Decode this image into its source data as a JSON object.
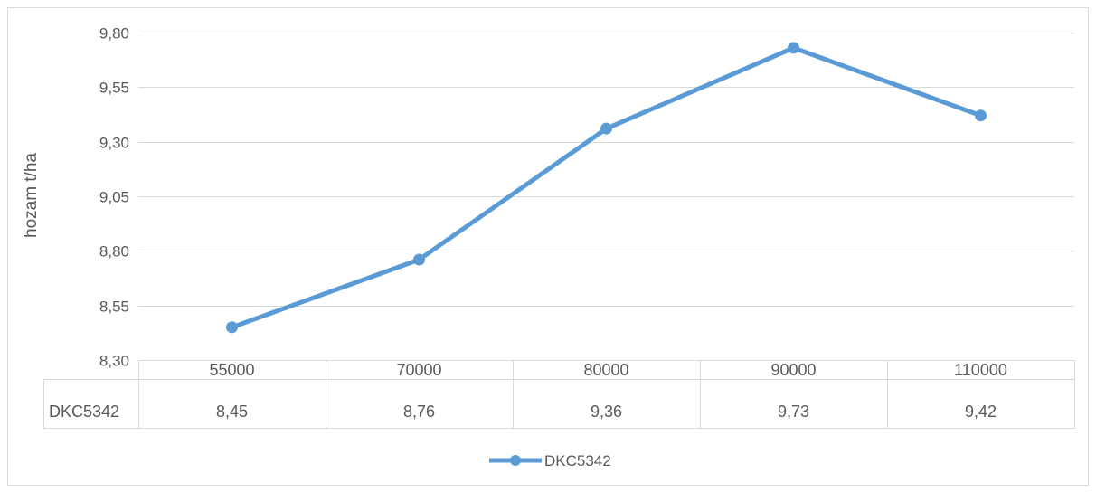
{
  "chart_data": {
    "type": "line",
    "title": "",
    "xlabel": "",
    "ylabel": "hozam t/ha",
    "categories": [
      "55000",
      "70000",
      "80000",
      "90000",
      "110000"
    ],
    "series": [
      {
        "name": "DKC5342",
        "values": [
          8.45,
          8.76,
          9.36,
          9.73,
          9.42
        ],
        "color": "#5b9bd5"
      }
    ],
    "ylim": [
      8.3,
      9.8
    ],
    "yticks": [
      "8,30",
      "8,55",
      "8,80",
      "9,05",
      "9,30",
      "9,55",
      "9,80"
    ],
    "data_table": {
      "row_label": "DKC5342",
      "cells": [
        "8,45",
        "8,76",
        "9,36",
        "9,73",
        "9,42"
      ]
    },
    "legend": {
      "position": "bottom",
      "entries": [
        "DKC5342"
      ]
    },
    "grid": true,
    "colors": {
      "line": "#5b9bd5",
      "grid": "#d9d9d9",
      "text": "#595959",
      "border": "#d9d9d9"
    }
  }
}
